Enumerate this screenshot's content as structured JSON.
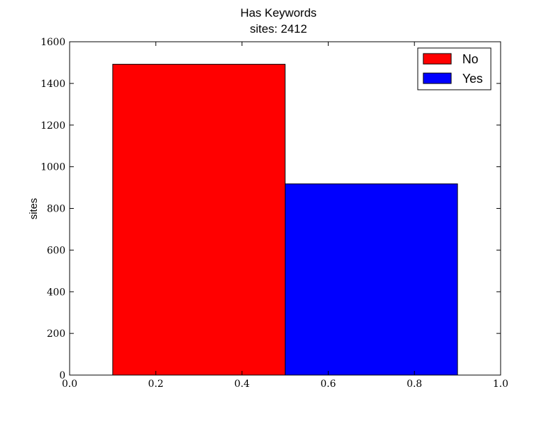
{
  "chart_data": {
    "type": "bar",
    "title": "Has Keywords",
    "subtitle": "sites: 2412",
    "xlabel": "",
    "ylabel": "sites",
    "xlim": [
      0.0,
      1.0
    ],
    "ylim": [
      0,
      1600
    ],
    "x_ticks": [
      "0.0",
      "0.2",
      "0.4",
      "0.6",
      "0.8",
      "1.0"
    ],
    "y_ticks": [
      "0",
      "200",
      "400",
      "600",
      "800",
      "1000",
      "1200",
      "1400",
      "1600"
    ],
    "bars": [
      {
        "category": "No",
        "x_start": 0.1,
        "x_end": 0.5,
        "value": 1492,
        "color": "#ff0000"
      },
      {
        "category": "Yes",
        "x_start": 0.5,
        "x_end": 0.9,
        "value": 918,
        "color": "#0000ff"
      }
    ],
    "legend": {
      "position": "upper right",
      "entries": [
        {
          "label": "No",
          "color": "#ff0000"
        },
        {
          "label": "Yes",
          "color": "#0000ff"
        }
      ]
    },
    "grid": false
  }
}
